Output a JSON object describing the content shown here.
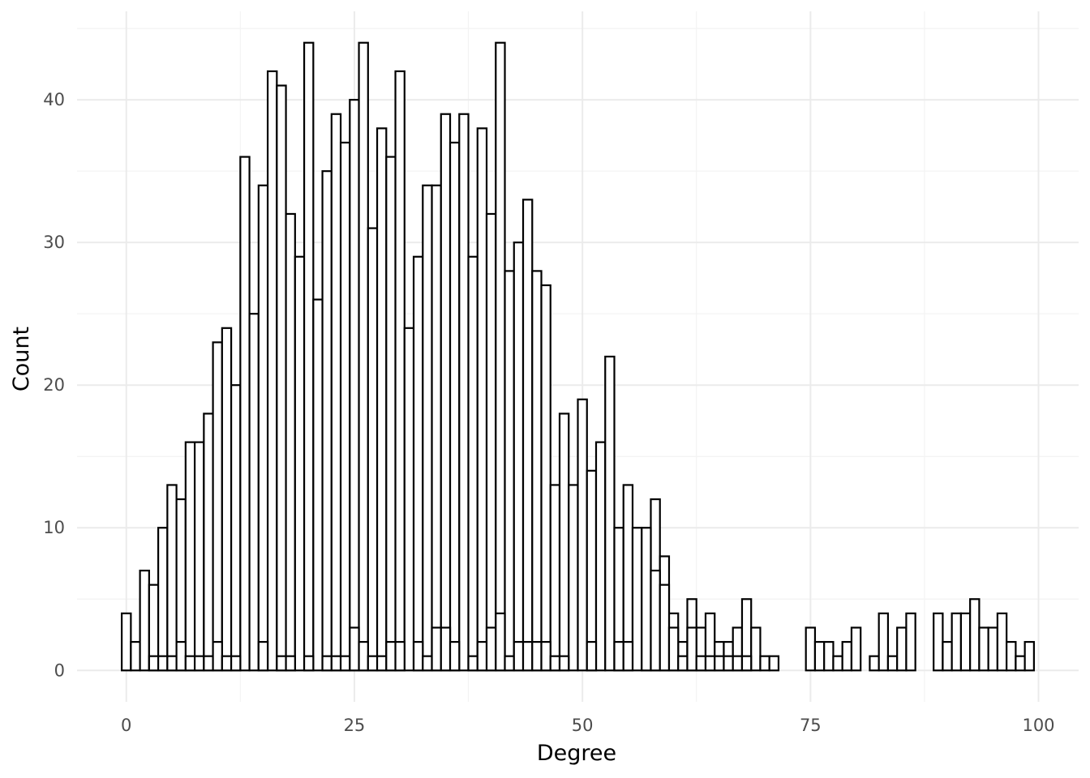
{
  "chart_data": {
    "type": "bar",
    "subtype": "histogram",
    "title": "",
    "xlabel": "Degree",
    "ylabel": "Count",
    "xlim": [
      -5.4,
      104.4
    ],
    "ylim": [
      -2.2,
      46.2
    ],
    "x_ticks": [
      0,
      25,
      50,
      75,
      100
    ],
    "x_tick_labels": [
      "0",
      "25",
      "50",
      "75",
      "100"
    ],
    "y_ticks": [
      0,
      10,
      20,
      30,
      40
    ],
    "y_tick_labels": [
      "0",
      "10",
      "20",
      "30",
      "40"
    ],
    "grid": true,
    "legend": "none",
    "fill_color": "#ffffff",
    "outline_color": "#000000",
    "layers": [
      {
        "name": "",
        "bin_starts": [
          -0.5,
          0.5,
          1.5,
          2.5,
          3.5,
          4.5,
          5.5,
          6.5,
          7.5,
          8.5,
          9.5,
          10.5,
          11.5,
          12.5,
          13.5,
          14.5,
          15.5,
          16.5,
          17.5,
          18.5,
          19.5,
          20.5,
          21.5,
          22.5,
          23.5,
          24.5,
          25.5,
          26.5,
          27.5,
          28.5,
          29.5,
          30.5,
          31.5,
          32.5,
          33.5,
          34.5,
          35.5,
          36.5,
          37.5,
          38.5,
          39.5,
          40.5,
          41.5,
          42.5,
          43.5,
          44.5,
          45.5,
          46.5,
          47.5,
          48.5,
          49.5,
          50.5,
          51.5,
          52.5,
          53.5,
          54.5,
          55.5,
          56.5,
          57.5,
          58.5,
          59.5,
          60.5,
          61.5,
          62.5,
          63.5,
          64.5,
          65.5,
          66.5,
          67.5,
          68.5,
          69.5,
          70.5,
          74.5,
          75.5,
          76.5,
          77.5,
          78.5,
          79.5,
          81.5,
          82.5,
          83.5,
          84.5,
          85.5,
          88.5,
          89.5,
          90.5,
          91.5,
          92.5,
          93.5,
          94.5,
          95.5,
          96.5,
          97.5,
          98.5
        ],
        "counts": [
          4,
          2,
          7,
          6,
          10,
          13,
          12,
          16,
          16,
          18,
          23,
          24,
          20,
          36,
          25,
          34,
          42,
          41,
          32,
          29,
          44,
          26,
          35,
          39,
          37,
          40,
          44,
          31,
          38,
          36,
          42,
          24,
          29,
          34,
          34,
          39,
          37,
          39,
          29,
          38,
          32,
          44,
          28,
          30,
          33,
          28,
          27,
          13,
          18,
          13,
          19,
          14,
          16,
          22,
          10,
          13,
          10,
          9,
          12,
          8,
          4,
          2,
          5,
          3,
          4,
          2,
          2,
          3,
          5,
          3,
          1,
          1,
          3,
          2,
          2,
          1,
          2,
          3,
          1,
          4,
          1,
          3,
          4,
          4,
          2,
          4,
          4,
          5,
          3,
          3,
          4,
          2,
          1,
          2
        ]
      },
      {
        "name": "",
        "bin_starts": [
          -0.5,
          0.5,
          1.5,
          2.5,
          3.5,
          4.5,
          5.5,
          6.5,
          7.5,
          8.5,
          9.5,
          10.5,
          11.5,
          12.5,
          13.5,
          14.5,
          15.5,
          16.5,
          17.5,
          18.5,
          19.5,
          20.5,
          21.5,
          22.5,
          23.5,
          24.5,
          25.5,
          26.5,
          27.5,
          28.5,
          29.5,
          30.5,
          31.5,
          32.5,
          33.5,
          34.5,
          35.5,
          36.5,
          37.5,
          38.5,
          39.5,
          40.5,
          41.5,
          42.5,
          43.5,
          44.5,
          45.5,
          46.5,
          47.5,
          48.5,
          49.5,
          50.5,
          51.5,
          52.5,
          53.5,
          54.5,
          55.5,
          56.5,
          57.5,
          58.5,
          59.5,
          60.5,
          61.5,
          62.5,
          63.5,
          64.5,
          65.5,
          66.5,
          67.5
        ],
        "counts": [
          0,
          0,
          0,
          1,
          1,
          1,
          2,
          1,
          1,
          1,
          2,
          1,
          1,
          0,
          0,
          2,
          0,
          1,
          1,
          0,
          1,
          0,
          1,
          1,
          1,
          3,
          2,
          1,
          1,
          2,
          2,
          0,
          2,
          1,
          3,
          3,
          2,
          0,
          1,
          2,
          3,
          4,
          1,
          2,
          2,
          2,
          2,
          1,
          1,
          0,
          0,
          2,
          0,
          0,
          2,
          2,
          0,
          10,
          7,
          6,
          3,
          1,
          3,
          1,
          1,
          1,
          1,
          1,
          1
        ]
      }
    ]
  }
}
